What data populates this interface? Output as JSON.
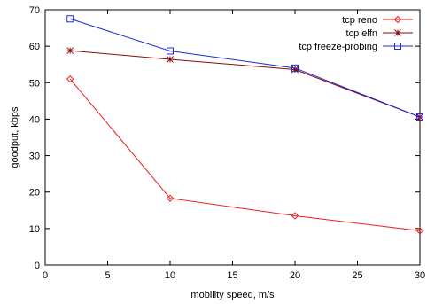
{
  "chart_data": {
    "type": "line",
    "title": "",
    "xlabel": "mobility speed, m/s",
    "ylabel": "goodput, kbps",
    "xlim": [
      0,
      30
    ],
    "ylim": [
      0,
      70
    ],
    "xticks": [
      0,
      5,
      10,
      15,
      20,
      25,
      30
    ],
    "yticks": [
      0,
      10,
      20,
      30,
      40,
      50,
      60,
      70
    ],
    "grid": false,
    "legend_position": "top-right",
    "series": [
      {
        "name": "tcp reno",
        "color": "#ee1c1c",
        "marker": "diamond",
        "x": [
          2,
          10,
          20,
          30
        ],
        "y": [
          51,
          18.3,
          13.5,
          9.4
        ]
      },
      {
        "name": "tcp elfn",
        "color": "#8b0a0a",
        "marker": "star",
        "x": [
          2,
          10,
          20,
          30
        ],
        "y": [
          58.8,
          56.4,
          53.6,
          40.6
        ]
      },
      {
        "name": "tcp freeze-probing",
        "color": "#1f2bd6",
        "marker": "square",
        "x": [
          2,
          10,
          20,
          30
        ],
        "y": [
          67.5,
          58.7,
          54,
          40.6
        ]
      }
    ]
  }
}
